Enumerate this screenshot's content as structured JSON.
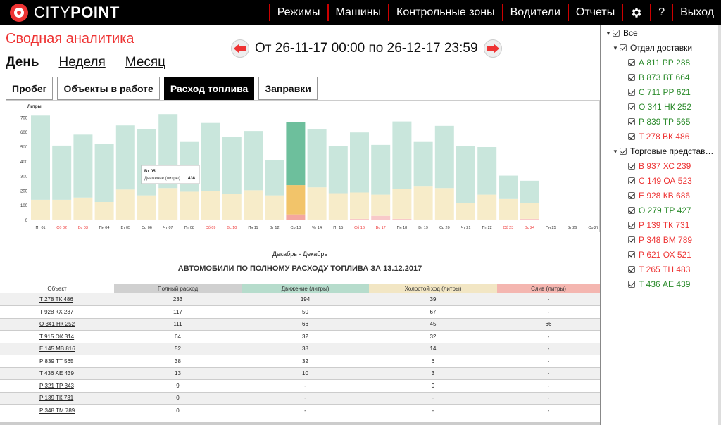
{
  "app": {
    "logo_text": "CITY",
    "logo_bold": "POINT"
  },
  "nav": {
    "items": [
      "Режимы",
      "Машины",
      "Контрольные зоны",
      "Водители",
      "Отчеты"
    ],
    "help": "?",
    "logout": "Выход",
    "settings_icon": "gear-icon"
  },
  "page": {
    "title": "Сводная аналитика",
    "periods": {
      "day": "День",
      "week": "Неделя",
      "month": "Месяц"
    },
    "date_range": "От 26-11-17 00:00 по 26-12-17 23:59",
    "tabs": [
      "Пробег",
      "Объекты в работе",
      "Расход топлива",
      "Заправки"
    ],
    "active_tab": 2
  },
  "chart_data": {
    "type": "bar",
    "ylabel": "Литры",
    "ylim": [
      0,
      750
    ],
    "yticks": [
      0,
      100,
      200,
      300,
      400,
      500,
      600,
      700
    ],
    "categories": [
      "Пт 01",
      "Сб 02",
      "Вс 03",
      "Пн 04",
      "Вт 05",
      "Ср 06",
      "Чт 07",
      "Пт 08",
      "Сб 09",
      "Вс 10",
      "Пн 11",
      "Вт 12",
      "Ср 13",
      "Чт 14",
      "Пт 15",
      "Сб 16",
      "Вс 17",
      "Пн 18",
      "Вт 19",
      "Ср 20",
      "Чт 21",
      "Пт 22",
      "Сб 23",
      "Вс 24",
      "Пн 25",
      "Вт 26",
      "Ср 27"
    ],
    "weekend": [
      false,
      true,
      true,
      false,
      false,
      false,
      false,
      false,
      true,
      true,
      false,
      false,
      false,
      false,
      false,
      true,
      true,
      false,
      false,
      false,
      false,
      false,
      true,
      true,
      false,
      false,
      false
    ],
    "series": [
      {
        "name": "Движение (литры)",
        "color": "#c9e6dc",
        "values": [
          575,
          370,
          430,
          395,
          438,
          455,
          505,
          340,
          465,
          390,
          405,
          240,
          430,
          395,
          320,
          410,
          340,
          460,
          305,
          425,
          385,
          325,
          160,
          150,
          0,
          0,
          0
        ]
      },
      {
        "name": "Холостой ход (литры)",
        "color": "#f7ecc9",
        "values": [
          135,
          135,
          150,
          120,
          205,
          165,
          215,
          190,
          195,
          175,
          200,
          165,
          200,
          220,
          180,
          180,
          145,
          205,
          225,
          215,
          115,
          170,
          140,
          110,
          0,
          0,
          0
        ]
      },
      {
        "name": "Слив (литры)",
        "color": "#f8c9c9",
        "values": [
          5,
          5,
          5,
          5,
          5,
          5,
          5,
          5,
          5,
          5,
          5,
          5,
          40,
          5,
          5,
          10,
          30,
          10,
          5,
          5,
          5,
          5,
          5,
          10,
          0,
          0,
          0
        ]
      }
    ],
    "highlight_index": 12,
    "highlight_colors": [
      "#6dbf9c",
      "#f2c46a",
      "#f4a7a0"
    ],
    "tooltip": {
      "title": "Вт 05",
      "label": "Движение (литры)",
      "value": "438"
    },
    "caption": "Декабрь - Декабрь"
  },
  "table": {
    "title": "АВТОМОБИЛИ ПО ПОЛНОМУ РАСХОДУ ТОПЛИВА ЗА 13.12.2017",
    "headers": [
      "Объект",
      "Полный расход",
      "Движение (литры)",
      "Холостой ход (литры)",
      "Слив (литры)"
    ],
    "header_colors": [
      "#ffffff",
      "#d0d0d0",
      "#b6dccc",
      "#f2e6c4",
      "#f4b6b0"
    ],
    "rows": [
      [
        "Т 278 ТК 486",
        "233",
        "194",
        "39",
        "-"
      ],
      [
        "Т 928 КХ 237",
        "117",
        "50",
        "67",
        "-"
      ],
      [
        "О 341 НК 252",
        "111",
        "66",
        "45",
        "66"
      ],
      [
        "Т 915 ОК 314",
        "64",
        "32",
        "32",
        "-"
      ],
      [
        "Е 145 МВ 816",
        "52",
        "38",
        "14",
        "-"
      ],
      [
        "Р 839 ТТ 565",
        "38",
        "32",
        "6",
        "-"
      ],
      [
        "Т 436 АЕ 439",
        "13",
        "10",
        "3",
        "-"
      ],
      [
        "Р 321 ТР 343",
        "9",
        "-",
        "9",
        "-"
      ],
      [
        "Р 139 ТК 731",
        "0",
        "-",
        "-",
        "-"
      ],
      [
        "Р 348 ТМ 789",
        "0",
        "-",
        "-",
        "-"
      ]
    ]
  },
  "sidebar": {
    "all": "Все",
    "groups": [
      {
        "name": "Отдел доставки",
        "vehicles": [
          {
            "plate": "А 811 РР 288",
            "status": "green"
          },
          {
            "plate": "В 873 ВТ 664",
            "status": "green"
          },
          {
            "plate": "С 711 РР 621",
            "status": "green"
          },
          {
            "plate": "О 341 НК 252",
            "status": "green"
          },
          {
            "plate": "Р 839 ТР 565",
            "status": "green"
          },
          {
            "plate": "Т 278 ВК 486",
            "status": "red"
          }
        ]
      },
      {
        "name": "Торговые представ…",
        "vehicles": [
          {
            "plate": "В 937 ХС 239",
            "status": "red"
          },
          {
            "plate": "С 149 ОА 523",
            "status": "red"
          },
          {
            "plate": "Е 928 КВ 686",
            "status": "red"
          },
          {
            "plate": "О 279 ТР 427",
            "status": "green"
          },
          {
            "plate": "Р 139 ТК 731",
            "status": "red"
          },
          {
            "plate": "Р 348 ВМ 789",
            "status": "red"
          },
          {
            "plate": "Р 621 ОХ 521",
            "status": "red"
          },
          {
            "plate": "Т 265 ТН 483",
            "status": "red"
          },
          {
            "plate": "Т 436 АЕ 439",
            "status": "green"
          }
        ]
      }
    ]
  }
}
